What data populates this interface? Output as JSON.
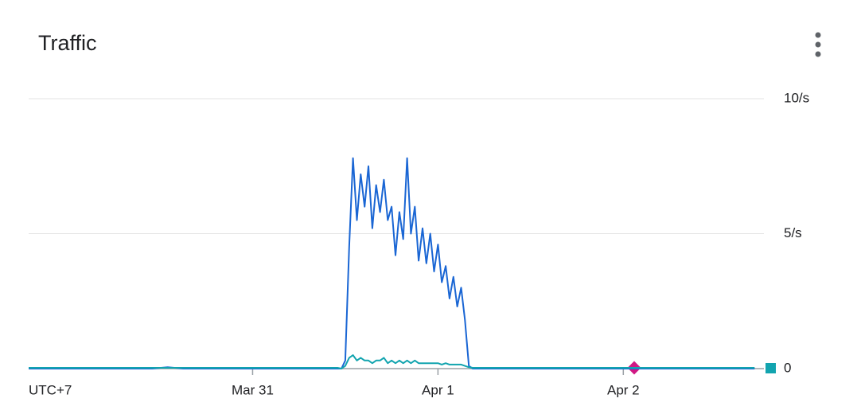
{
  "chart_data": {
    "type": "line",
    "title": "Traffic",
    "timezone": "UTC+7",
    "x": [
      0,
      2,
      4,
      6,
      8,
      10,
      12,
      14,
      16,
      18,
      20,
      22,
      24,
      26,
      28,
      30,
      32,
      34,
      36,
      38,
      40,
      40.5,
      41,
      41.5,
      42,
      42.5,
      43,
      43.5,
      44,
      44.5,
      45,
      45.5,
      46,
      46.5,
      47,
      47.5,
      48,
      48.5,
      49,
      49.5,
      50,
      50.5,
      51,
      51.5,
      52,
      52.5,
      53,
      53.5,
      54,
      54.5,
      55,
      55.5,
      56,
      56.5,
      57,
      57.5,
      58,
      60,
      62,
      64,
      66,
      68,
      70,
      72,
      74,
      76,
      78,
      80,
      82,
      84,
      86,
      88,
      90,
      92,
      94
    ],
    "xlim": [
      0,
      95
    ],
    "xticks": [
      {
        "value": 29,
        "label": "Mar 31"
      },
      {
        "value": 53,
        "label": "Apr 1"
      },
      {
        "value": 77,
        "label": "Apr 2"
      }
    ],
    "ylim": [
      0,
      10
    ],
    "yticks": [
      0,
      {
        "value": 5,
        "label": "5/s"
      },
      {
        "value": 10,
        "label": "10/s"
      }
    ],
    "grid": true,
    "series": [
      {
        "color": "#1a66d4",
        "values": [
          0,
          0,
          0,
          0,
          0,
          0,
          0,
          0,
          0,
          0.05,
          0,
          0,
          0,
          0,
          0,
          0,
          0,
          0,
          0,
          0,
          0,
          0,
          0.3,
          4.5,
          7.8,
          5.5,
          7.2,
          6.0,
          7.5,
          5.2,
          6.8,
          5.8,
          7.0,
          5.5,
          6.0,
          4.2,
          5.8,
          4.8,
          7.8,
          5.0,
          6.0,
          4.0,
          5.2,
          3.9,
          5.0,
          3.6,
          4.6,
          3.2,
          3.8,
          2.6,
          3.4,
          2.3,
          3.0,
          1.8,
          0.1,
          0,
          0,
          0,
          0,
          0,
          0,
          0,
          0,
          0,
          0,
          0,
          0,
          0,
          0,
          0,
          0,
          0,
          0,
          0,
          0
        ]
      },
      {
        "color": "#12a4af",
        "values": [
          0.03,
          0.03,
          0.03,
          0.03,
          0.03,
          0.03,
          0.03,
          0.03,
          0.03,
          0.03,
          0.03,
          0.03,
          0.03,
          0.03,
          0.03,
          0.03,
          0.03,
          0.03,
          0.03,
          0.03,
          0.03,
          0,
          0.1,
          0.4,
          0.5,
          0.3,
          0.4,
          0.3,
          0.3,
          0.2,
          0.3,
          0.3,
          0.4,
          0.2,
          0.3,
          0.2,
          0.3,
          0.2,
          0.3,
          0.2,
          0.3,
          0.2,
          0.2,
          0.2,
          0.2,
          0.2,
          0.2,
          0.15,
          0.2,
          0.15,
          0.15,
          0.15,
          0.15,
          0.1,
          0.05,
          0.03,
          0.03,
          0.03,
          0.03,
          0.03,
          0.03,
          0.03,
          0.03,
          0.03,
          0.03,
          0.03,
          0.03,
          0.03,
          0.03,
          0.03,
          0.03,
          0.03,
          0.03,
          0.03,
          0.03
        ]
      }
    ]
  }
}
